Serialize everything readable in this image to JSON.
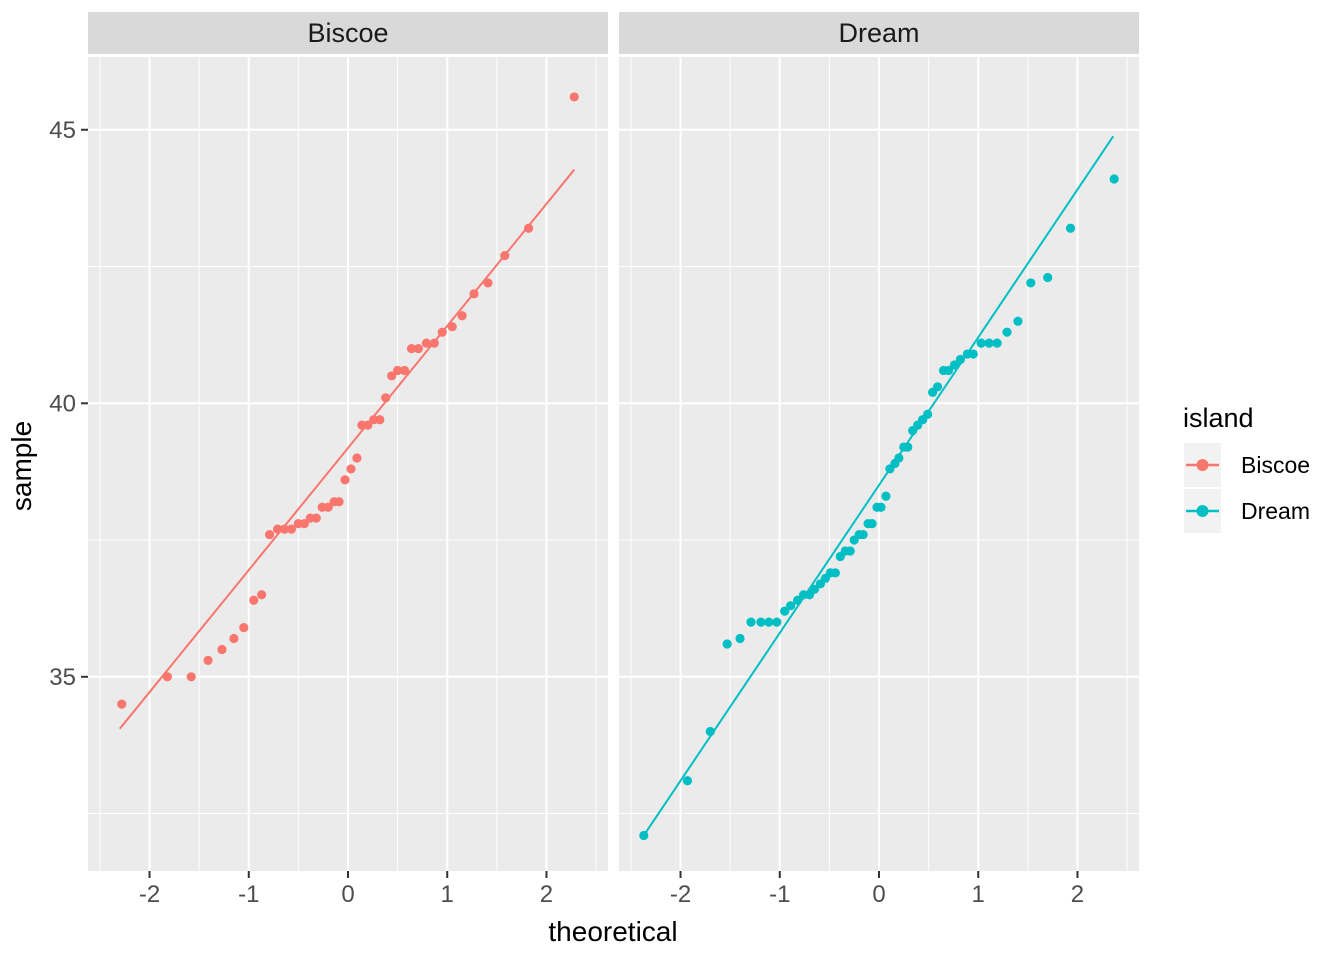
{
  "figure": {
    "kind": "faceted normal Q-Q plot"
  },
  "facets": [
    {
      "label": "Biscoe"
    },
    {
      "label": "Dream"
    }
  ],
  "axes": {
    "x_title": "theoretical",
    "y_title": "sample",
    "x_ticks": [
      "-2",
      "-1",
      "0",
      "1",
      "2"
    ],
    "x_tick_values": [
      -2,
      -1,
      0,
      1,
      2
    ],
    "y_ticks": [
      "35",
      "40",
      "45"
    ],
    "y_tick_values": [
      35,
      40,
      45
    ]
  },
  "legend": {
    "title": "island",
    "entries": [
      {
        "label": "Biscoe",
        "color": "#F8766D"
      },
      {
        "label": "Dream",
        "color": "#00BFC4"
      }
    ]
  },
  "colors": {
    "background": "#FFFFFF",
    "panel": "#EBEBEB",
    "strip": "#D9D9D9",
    "grid": "#FFFFFF",
    "tick_mark": "#333333",
    "tick_text": "#4D4D4D",
    "text": "#000000",
    "legend_key": "#F2F2F2",
    "biscoe": "#F8766D",
    "dream": "#00BFC4"
  },
  "chart_data": {
    "type": "scatter",
    "subtype": "qq-plot",
    "title": "",
    "facet_by": "island",
    "xlabel": "theoretical",
    "ylabel": "sample",
    "xlim": [
      -2.62,
      2.62
    ],
    "ylim": [
      31.45,
      46.33
    ],
    "grid": true,
    "x_major": [
      -2,
      -1,
      0,
      1,
      2
    ],
    "y_major": [
      35,
      40,
      45
    ],
    "x_minor": [
      -2.5,
      -1.5,
      -0.5,
      0.5,
      1.5,
      2.5
    ],
    "y_minor": [
      32.5,
      37.5,
      42.5
    ],
    "legend_position": "right",
    "series": [
      {
        "name": "Biscoe",
        "color": "#F8766D",
        "x": [
          -2.28,
          -1.82,
          -1.58,
          -1.41,
          -1.27,
          -1.15,
          -1.05,
          -0.95,
          -0.87,
          -0.79,
          -0.71,
          -0.64,
          -0.57,
          -0.5,
          -0.44,
          -0.38,
          -0.32,
          -0.26,
          -0.2,
          -0.14,
          -0.09,
          -0.03,
          0.03,
          0.09,
          0.14,
          0.2,
          0.26,
          0.32,
          0.38,
          0.44,
          0.5,
          0.57,
          0.64,
          0.71,
          0.79,
          0.87,
          0.95,
          1.05,
          1.15,
          1.27,
          1.41,
          1.58,
          1.82,
          2.28
        ],
        "y": [
          34.5,
          35.0,
          35.0,
          35.3,
          35.5,
          35.7,
          35.9,
          36.4,
          36.5,
          37.6,
          37.7,
          37.7,
          37.7,
          37.8,
          37.8,
          37.9,
          37.9,
          38.1,
          38.1,
          38.2,
          38.2,
          38.6,
          38.8,
          39.0,
          39.6,
          39.6,
          39.7,
          39.7,
          40.1,
          40.5,
          40.6,
          40.6,
          41.0,
          41.0,
          41.1,
          41.1,
          41.3,
          41.4,
          41.6,
          42.0,
          42.2,
          42.7,
          43.2,
          45.6
        ],
        "qq_line": {
          "x1": -2.3,
          "y1": 34.05,
          "x2": 2.28,
          "y2": 44.27
        }
      },
      {
        "name": "Dream",
        "color": "#00BFC4",
        "x": [
          -2.37,
          -1.93,
          -1.7,
          -1.53,
          -1.4,
          -1.29,
          -1.19,
          -1.11,
          -1.03,
          -0.95,
          -0.89,
          -0.82,
          -0.76,
          -0.7,
          -0.65,
          -0.59,
          -0.54,
          -0.49,
          -0.44,
          -0.39,
          -0.34,
          -0.29,
          -0.25,
          -0.2,
          -0.16,
          -0.11,
          -0.07,
          -0.02,
          0.02,
          0.07,
          0.11,
          0.16,
          0.2,
          0.25,
          0.29,
          0.34,
          0.39,
          0.44,
          0.49,
          0.54,
          0.59,
          0.65,
          0.7,
          0.76,
          0.82,
          0.89,
          0.95,
          1.03,
          1.11,
          1.19,
          1.29,
          1.4,
          1.53,
          1.7,
          1.93,
          2.37
        ],
        "y": [
          32.1,
          33.1,
          34.0,
          35.6,
          35.7,
          36.0,
          36.0,
          36.0,
          36.0,
          36.2,
          36.3,
          36.4,
          36.5,
          36.5,
          36.6,
          36.7,
          36.8,
          36.9,
          36.9,
          37.2,
          37.3,
          37.3,
          37.5,
          37.6,
          37.6,
          37.8,
          37.8,
          38.1,
          38.1,
          38.3,
          38.8,
          38.9,
          39.0,
          39.2,
          39.2,
          39.5,
          39.6,
          39.7,
          39.8,
          40.2,
          40.3,
          40.6,
          40.6,
          40.7,
          40.8,
          40.9,
          40.9,
          41.1,
          41.1,
          41.1,
          41.3,
          41.5,
          42.2,
          42.3,
          43.2,
          44.1
        ],
        "qq_line": {
          "x1": -2.37,
          "y1": 32.1,
          "x2": 2.36,
          "y2": 44.88
        }
      }
    ]
  }
}
